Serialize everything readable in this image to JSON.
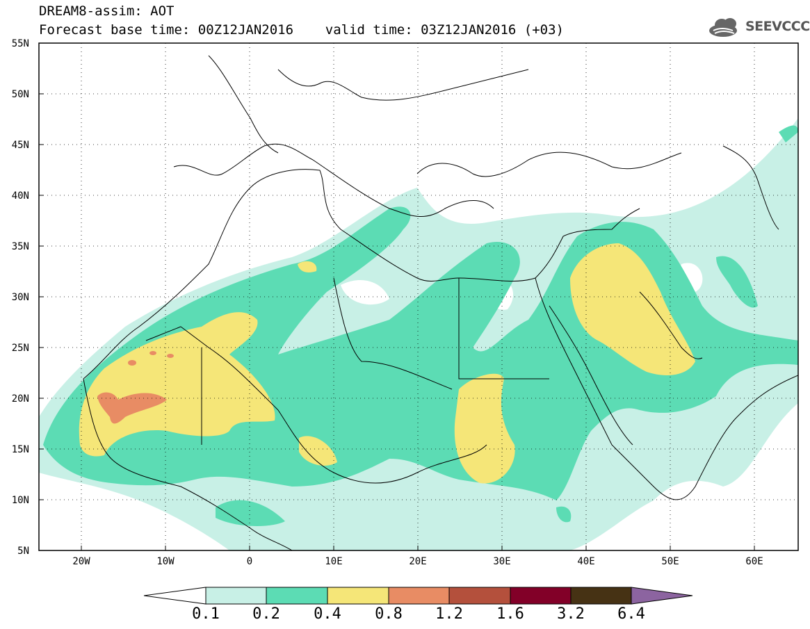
{
  "header": {
    "title": "DREAM8-assim: AOT",
    "subtitle": "Forecast base time: 00Z12JAN2016    valid time: 03Z12JAN2016 (+03)",
    "logo_text": "SEEVCCC"
  },
  "map": {
    "projection": "lat-lon",
    "lon_range": [
      -25,
      65
    ],
    "lat_range": [
      5,
      55
    ],
    "lat_labels": [
      "55N",
      "50N",
      "45N",
      "40N",
      "35N",
      "30N",
      "25N",
      "20N",
      "15N",
      "10N",
      "5N"
    ],
    "lon_labels": [
      "20W",
      "10W",
      "0",
      "10E",
      "20E",
      "30E",
      "40E",
      "50E",
      "60E"
    ],
    "grid": "dotted"
  },
  "colorbar": {
    "labels": [
      "0.1",
      "0.2",
      "0.4",
      "0.8",
      "1.2",
      "1.6",
      "3.2",
      "6.4"
    ],
    "colors": [
      "#ffffff",
      "#c8f0e6",
      "#5cdcb4",
      "#f5e678",
      "#e88c64",
      "#b4503c",
      "#820028",
      "#463214",
      "#8c64a0"
    ]
  }
}
